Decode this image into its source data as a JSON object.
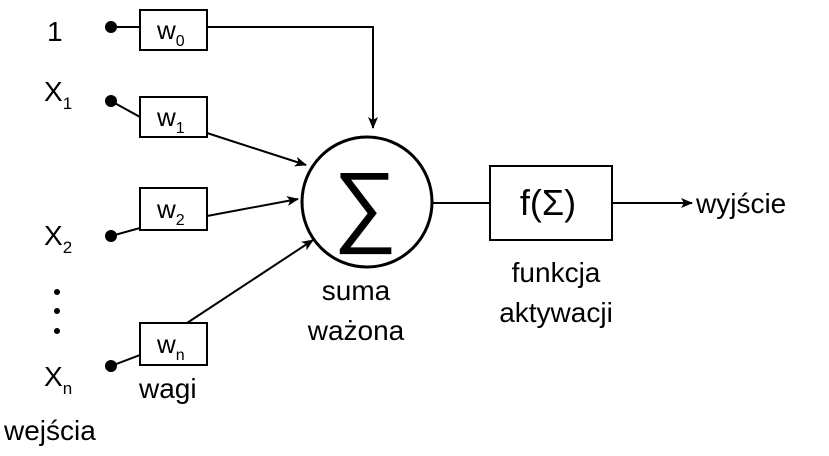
{
  "inputs": [
    {
      "label": "1",
      "subscript": "",
      "weight": "w",
      "weight_sub": "0"
    },
    {
      "label": "X",
      "subscript": "1",
      "weight": "w",
      "weight_sub": "1"
    },
    {
      "label": "X",
      "subscript": "2",
      "weight": "w",
      "weight_sub": "2"
    },
    {
      "label": "X",
      "subscript": "n",
      "weight": "w",
      "weight_sub": "n"
    }
  ],
  "labels": {
    "inputs_caption": "wejścia",
    "weights_caption": "wagi",
    "sum_symbol": "∑",
    "sum_caption_line1": "suma",
    "sum_caption_line2": "ważona",
    "activation_box": "f(Σ)",
    "activation_caption_line1": "funkcja",
    "activation_caption_line2": "aktywacji",
    "output": "wyjście"
  }
}
